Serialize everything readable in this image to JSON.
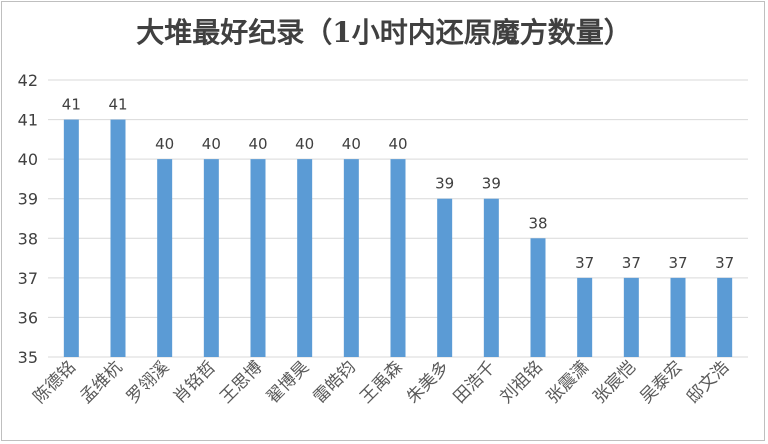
{
  "chart_data": {
    "type": "bar",
    "title": "大堆最好纪录（1小时内还原魔方数量）",
    "xlabel": "",
    "ylabel": "",
    "ylim": [
      35,
      42
    ],
    "yticks": [
      35,
      36,
      37,
      38,
      39,
      40,
      41,
      42
    ],
    "grid": true,
    "bar_color": "#5b9bd5",
    "categories": [
      "陈德铭",
      "孟维杭",
      "罗翎溪",
      "肖铭哲",
      "王思博",
      "翟博昊",
      "雷皓钧",
      "王禹森",
      "朱美多",
      "田浩千",
      "刘祖铭",
      "张震潇",
      "张宸恺",
      "吴泰宏",
      "邸文浩"
    ],
    "values": [
      41,
      41,
      40,
      40,
      40,
      40,
      40,
      40,
      39,
      39,
      38,
      37,
      37,
      37,
      37
    ]
  }
}
